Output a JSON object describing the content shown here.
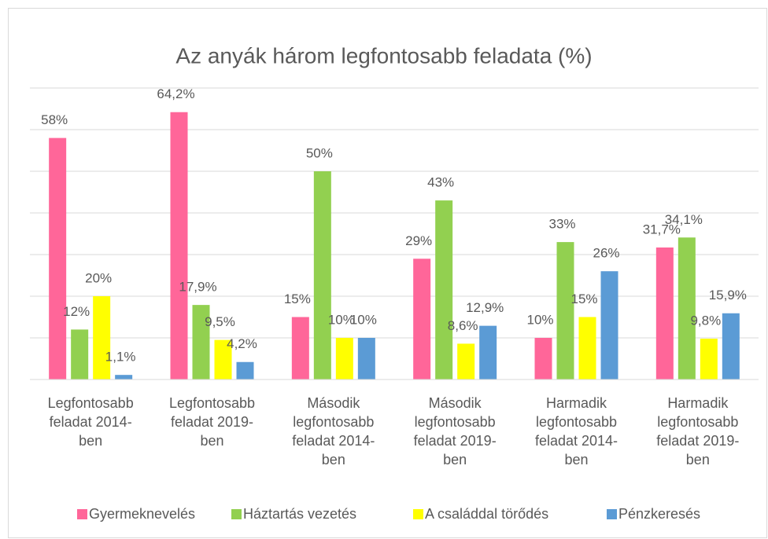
{
  "chart_data": {
    "type": "bar",
    "title": "Az anyák három legfontosabb feladata (%)",
    "categories": [
      "Legfontosabb feladat 2014-ben",
      "Legfontosabb feladat 2019-ben",
      "Második legfontosabb feladat 2014-ben",
      "Második legfontosabb feladat 2019-ben",
      "Harmadik legfontosabb feladat 2014-ben",
      "Harmadik legfontosabb feladat 2019-ben"
    ],
    "series": [
      {
        "name": "Gyermeknevelés",
        "color": "#ff6699",
        "values": [
          58,
          64.2,
          15,
          29,
          10,
          31.7
        ],
        "value_labels": [
          "58%",
          "64,2%",
          "15%",
          "29%",
          "10%",
          "31,7%"
        ]
      },
      {
        "name": "Háztartás vezetés",
        "color": "#92d050",
        "values": [
          12,
          17.9,
          50,
          43,
          33,
          34.1
        ],
        "value_labels": [
          "12%",
          "17,9%",
          "50%",
          "43%",
          "33%",
          "34,1%"
        ]
      },
      {
        "name": "A családdal törődés",
        "color": "#ffff00",
        "values": [
          20,
          9.5,
          10,
          8.6,
          15,
          9.8
        ],
        "value_labels": [
          "20%",
          "9,5%",
          "10%",
          "8,6%",
          "15%",
          "9,8%"
        ]
      },
      {
        "name": "Pénzkeresés",
        "color": "#5b9bd5",
        "values": [
          1.1,
          4.2,
          10,
          12.9,
          26,
          15.9
        ],
        "value_labels": [
          "1,1%",
          "4,2%",
          "10%",
          "12,9%",
          "26%",
          "15,9%"
        ]
      }
    ],
    "ylim": [
      0,
      70
    ],
    "yticks": [
      0,
      10,
      20,
      30,
      40,
      50,
      60,
      70
    ],
    "grid": true,
    "legend": "bottom"
  }
}
